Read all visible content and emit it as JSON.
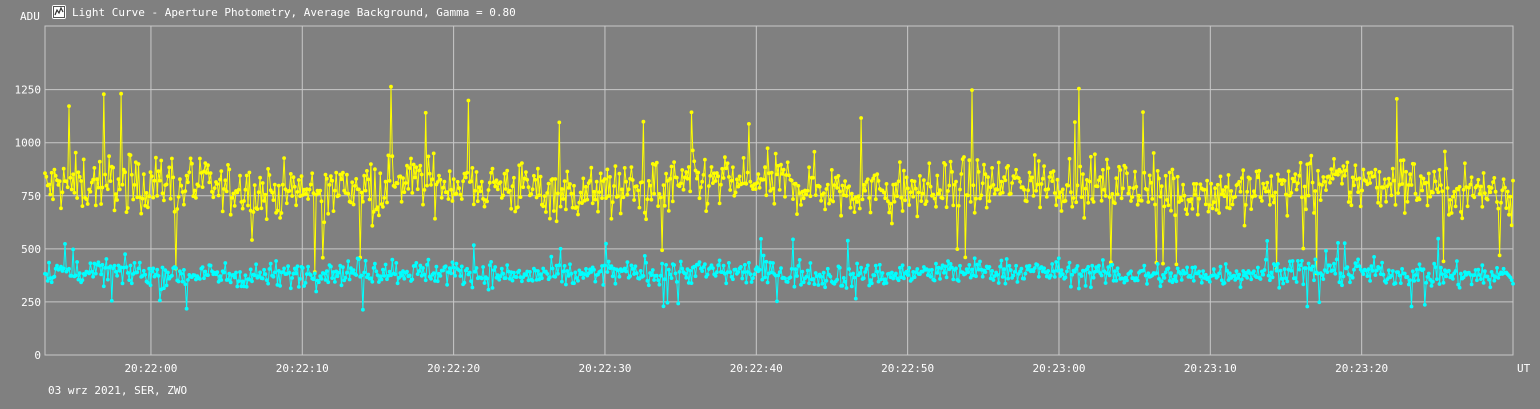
{
  "title": "Light Curve - Aperture Photometry, Average Background, Gamma = 0.80",
  "footer": "03 wrz 2021, SER, ZWO",
  "icons": {
    "app": "light-curve-app-icon"
  },
  "chart_data": {
    "type": "line",
    "ylabel": "ADU",
    "xlabel": "UT",
    "ylim": [
      0,
      1550
    ],
    "yticks": [
      0,
      250,
      500,
      750,
      1000,
      1250
    ],
    "xlim": [
      "20:21:53",
      "20:23:30"
    ],
    "xtick_labels": [
      "20:22:00",
      "20:22:10",
      "20:22:20",
      "20:22:30",
      "20:22:40",
      "20:22:50",
      "20:23:00",
      "20:23:10",
      "20:23:20"
    ],
    "grid": true,
    "background": "#808080",
    "samples_per_series": 1100,
    "series": [
      {
        "color": "#ffff00",
        "mean": 790,
        "spread": 95,
        "spike_max": 1270,
        "spike_min": 380
      },
      {
        "color": "#00ffff",
        "mean": 385,
        "spread": 42,
        "spike_max": 560,
        "spike_min": 200
      }
    ]
  }
}
